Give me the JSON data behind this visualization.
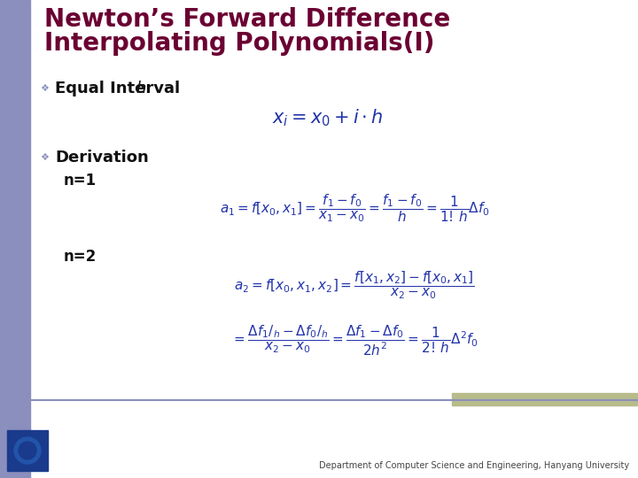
{
  "title_line1": "Newton’s Forward Difference",
  "title_line2": "Interpolating Polynomials(I)",
  "title_color": "#6B0032",
  "title_fontsize": 20,
  "bg_color": "#FFFFFF",
  "left_bar_color": "#8A8FBD",
  "top_bar_color": "#B8BB8A",
  "bullet_color": "#8A8FBD",
  "body_fontsize": 13,
  "footer": "Department of Computer Science and Engineering, Hanyang University",
  "formula_color": "#2233AA",
  "formula_fontsize": 11
}
